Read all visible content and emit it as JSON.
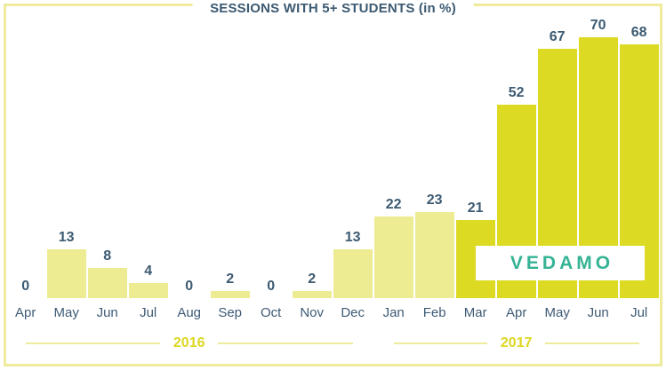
{
  "title": "SESSIONS WITH 5+ STUDENTS (in %)",
  "logo": {
    "text": "VEDAMO"
  },
  "colors": {
    "pale_bar": "#eeec92",
    "bright_bar": "#dcda22",
    "navy_text": "#3c5a72",
    "frame_border": "#eeeb9c",
    "year_text": "#ddd723",
    "logo_teal": "#35b394"
  },
  "chart_data": {
    "type": "bar",
    "title": "SESSIONS WITH 5+ STUDENTS (in %)",
    "categories": [
      "Apr",
      "May",
      "Jun",
      "Jul",
      "Aug",
      "Sep",
      "Oct",
      "Nov",
      "Dec",
      "Jan",
      "Feb",
      "Mar",
      "Apr",
      "May",
      "Jun",
      "Jul"
    ],
    "values": [
      0,
      13,
      8,
      4,
      0,
      2,
      0,
      2,
      13,
      22,
      23,
      21,
      52,
      67,
      70,
      68
    ],
    "value_suffix": "%",
    "xlabel": "",
    "ylabel": "",
    "ylim": [
      0,
      80
    ],
    "grid": false,
    "legend": "none",
    "data_labels": "above bars",
    "highlight_start_index": 11,
    "year_groups": [
      {
        "label": "2016",
        "start_index": 0,
        "end_index": 8
      },
      {
        "label": "2017",
        "start_index": 9,
        "end_index": 15
      }
    ]
  }
}
